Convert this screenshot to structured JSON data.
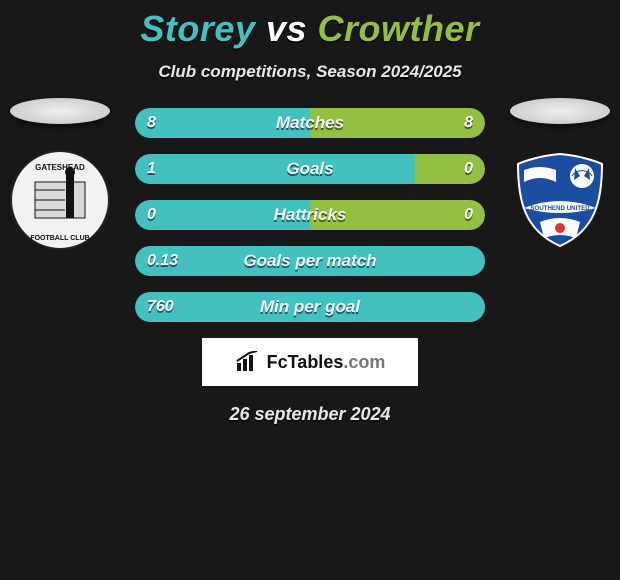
{
  "colors": {
    "player1_accent": "#43c1c1",
    "player2_accent": "#93bf42",
    "background": "#181818",
    "bar_track": "#2a2a2a",
    "text": "#e8e8e8"
  },
  "title": {
    "player1": "Storey",
    "vs": "vs",
    "player2": "Crowther"
  },
  "subtitle": "Club competitions, Season 2024/2025",
  "teams": {
    "left": {
      "name": "Gateshead",
      "crest_bg": "#f2f2f2",
      "crest_ring": "#222"
    },
    "right": {
      "name": "Southend United",
      "crest_bg": "#1b4ea0",
      "crest_ring": "#ffffff"
    }
  },
  "stats": [
    {
      "label": "Matches",
      "left_value": "8",
      "right_value": "8",
      "left_pct": 50,
      "right_pct": 50
    },
    {
      "label": "Goals",
      "left_value": "1",
      "right_value": "0",
      "left_pct": 80,
      "right_pct": 20
    },
    {
      "label": "Hattricks",
      "left_value": "0",
      "right_value": "0",
      "left_pct": 50,
      "right_pct": 50
    },
    {
      "label": "Goals per match",
      "left_value": "0.13",
      "right_value": "",
      "left_pct": 100,
      "right_pct": 0
    },
    {
      "label": "Min per goal",
      "left_value": "760",
      "right_value": "",
      "left_pct": 100,
      "right_pct": 0
    }
  ],
  "branding": {
    "icon_name": "bar-chart-icon",
    "text_black": "FcTables",
    "text_suffix": ".com"
  },
  "date": "26 september 2024"
}
